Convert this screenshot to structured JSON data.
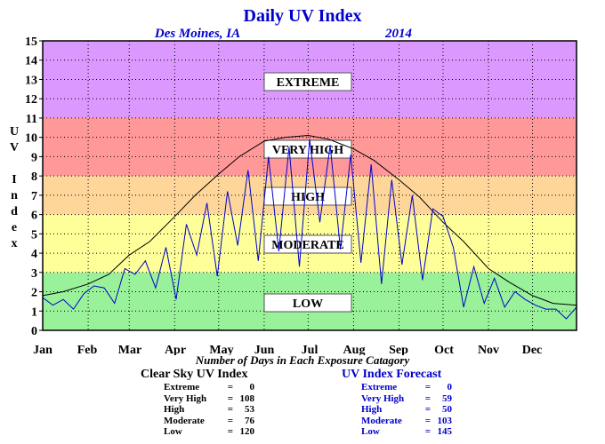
{
  "chart_data": {
    "type": "line",
    "title": "Daily UV Index",
    "subtitle_location": "Des Moines, IA",
    "subtitle_year": "2014",
    "ylabel": "UV Index",
    "ylim": [
      0,
      15
    ],
    "y_ticks": [
      "0",
      "1",
      "2",
      "3",
      "4",
      "5",
      "6",
      "7",
      "8",
      "9",
      "10",
      "11",
      "12",
      "13",
      "14",
      "15"
    ],
    "x_ticks": [
      "Jan",
      "Feb",
      "Mar",
      "Apr",
      "May",
      "Jun",
      "Jul",
      "Aug",
      "Sep",
      "Oct",
      "Nov",
      "Dec"
    ],
    "xlim": [
      1,
      365
    ],
    "grid": true,
    "bands": [
      {
        "label": "LOW",
        "from": 0,
        "to": 3,
        "color": "#99f299"
      },
      {
        "label": "MODERATE",
        "from": 3,
        "to": 6,
        "color": "#ffff99"
      },
      {
        "label": "HIGH",
        "from": 6,
        "to": 8,
        "color": "#ffd699"
      },
      {
        "label": "VERY HIGH",
        "from": 8,
        "to": 11,
        "color": "#ff9999"
      },
      {
        "label": "EXTREME",
        "from": 11,
        "to": 15,
        "color": "#db99ff"
      }
    ],
    "series": [
      {
        "name": "Clear Sky UV Index",
        "color": "#000000",
        "x": [
          1,
          15,
          32,
          46,
          60,
          74,
          91,
          105,
          121,
          135,
          152,
          166,
          182,
          196,
          213,
          227,
          244,
          258,
          274,
          288,
          305,
          319,
          335,
          349,
          365
        ],
        "values": [
          1.8,
          2.0,
          2.4,
          2.9,
          3.9,
          4.6,
          5.9,
          7.0,
          8.1,
          9.0,
          9.8,
          10.0,
          10.1,
          9.9,
          9.4,
          8.8,
          7.8,
          6.9,
          5.6,
          4.6,
          3.2,
          2.5,
          1.8,
          1.4,
          1.3
        ]
      },
      {
        "name": "UV Index Forecast",
        "color": "#0000cc",
        "x": [
          1,
          8,
          15,
          22,
          29,
          36,
          43,
          50,
          57,
          64,
          71,
          78,
          85,
          92,
          99,
          106,
          113,
          120,
          127,
          134,
          141,
          148,
          155,
          162,
          169,
          176,
          183,
          190,
          197,
          204,
          211,
          218,
          225,
          232,
          239,
          246,
          253,
          260,
          267,
          274,
          281,
          288,
          295,
          302,
          309,
          316,
          323,
          330,
          337,
          344,
          351,
          358,
          365
        ],
        "values": [
          1.7,
          1.3,
          1.6,
          1.1,
          1.9,
          2.3,
          2.2,
          1.4,
          3.2,
          2.9,
          3.6,
          2.2,
          4.3,
          1.6,
          5.5,
          3.9,
          6.6,
          2.8,
          7.2,
          4.4,
          8.3,
          3.6,
          9.0,
          4.1,
          9.5,
          3.3,
          9.9,
          5.6,
          9.6,
          4.2,
          9.1,
          3.5,
          8.6,
          2.4,
          7.8,
          3.4,
          7.0,
          2.6,
          6.3,
          5.9,
          4.3,
          1.2,
          3.3,
          1.4,
          2.7,
          1.2,
          2.0,
          1.6,
          1.3,
          1.1,
          1.1,
          0.6,
          1.2
        ]
      }
    ],
    "footer_caption": "Number of Days in Each Exposure Catagory",
    "clear_sky_stats": {
      "header": "Clear Sky UV Index",
      "rows": [
        {
          "label": "Extreme",
          "eq": "=",
          "value": "0"
        },
        {
          "label": "Very High",
          "eq": "=",
          "value": "108"
        },
        {
          "label": "High",
          "eq": "=",
          "value": "53"
        },
        {
          "label": "Moderate",
          "eq": "=",
          "value": "76"
        },
        {
          "label": "Low",
          "eq": "=",
          "value": "120"
        }
      ]
    },
    "forecast_stats": {
      "header": "UV Index Forecast",
      "rows": [
        {
          "label": "Extreme",
          "eq": "=",
          "value": "0"
        },
        {
          "label": "Very High",
          "eq": "=",
          "value": "59"
        },
        {
          "label": "High",
          "eq": "=",
          "value": "50"
        },
        {
          "label": "Moderate",
          "eq": "=",
          "value": "103"
        },
        {
          "label": "Low",
          "eq": "=",
          "value": "145"
        }
      ]
    }
  }
}
